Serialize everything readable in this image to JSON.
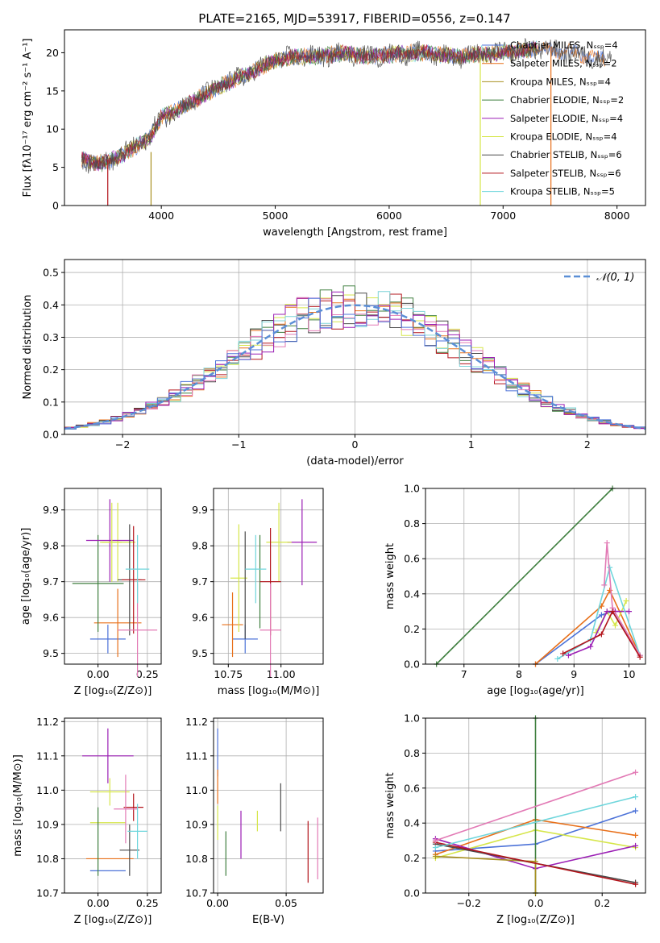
{
  "figure_title": "PLATE=2165, MJD=53917, FIBERID=0556, z=0.147",
  "colors": {
    "series": [
      "#4c72d8",
      "#e8701a",
      "#a89020",
      "#3f7f3f",
      "#9b1fb5",
      "#d6e64a",
      "#4a4a4a",
      "#b3141b",
      "#6fd6dc"
    ],
    "hist": [
      "#3f7f3f",
      "#e8701a",
      "#d6e64a",
      "#4a4a4a",
      "#b3141b",
      "#e27ab5",
      "#7fd3d8",
      "#9b1fb5",
      "#4c72d8"
    ],
    "normal_curve": "#5b8fd6",
    "grid": "#b0b0b0"
  },
  "chart_data": [
    {
      "id": "spectrum",
      "type": "line",
      "xlabel": "wavelength [Angstrom, rest frame]",
      "ylabel": "Flux [fλ10⁻¹⁷ erg cm⁻² s⁻¹ A⁻¹]",
      "xlim": [
        3150,
        8250
      ],
      "ylim": [
        0,
        23
      ],
      "xticks": [
        4000,
        5000,
        6000,
        7000,
        8000
      ],
      "yticks": [
        0,
        5,
        10,
        15,
        20
      ],
      "grid": false,
      "legend_position": "upper right",
      "legend": [
        "Chabrier MILES, Nₛₛₚ=4",
        "Salpeter MILES, Nₛₛₚ=2",
        "Kroupa MILES, Nₛₛₚ=4",
        "Chabrier ELODIE, Nₛₛₚ=2",
        "Salpeter ELODIE, Nₛₛₚ=4",
        "Kroupa ELODIE, Nₛₛₚ=4",
        "Chabrier STELIB, Nₛₛₚ=6",
        "Salpeter STELIB, Nₛₛₚ=6",
        "Kroupa STELIB, Nₛₛₚ=5"
      ],
      "continuum": {
        "x": [
          3300,
          3500,
          3700,
          3900,
          4000,
          4200,
          4500,
          4800,
          5000,
          5200,
          5400,
          5600,
          5800,
          6000,
          6300,
          6600,
          7000,
          7300,
          7600,
          7900
        ],
        "y": [
          6.0,
          5.5,
          7.0,
          9.0,
          11.5,
          13.0,
          15.5,
          17.5,
          19.0,
          19.5,
          19.5,
          20.0,
          19.5,
          19.8,
          20.0,
          19.5,
          20.0,
          20.5,
          20.0,
          19.0
        ]
      },
      "drop_lines": [
        {
          "x": 3530,
          "from": 6.0,
          "to": 0
        },
        {
          "x": 3910,
          "from": 7.0,
          "to": 0
        },
        {
          "x": 6800,
          "from": 19.5,
          "to": 0
        },
        {
          "x": 7420,
          "from": 20.5,
          "to": 0
        }
      ]
    },
    {
      "id": "residual_hist",
      "type": "bar",
      "xlabel": "(data-model)/error",
      "ylabel": "Normed distribution",
      "xlim": [
        -2.5,
        2.5
      ],
      "ylim": [
        0,
        0.54
      ],
      "xticks": [
        -2,
        -1,
        0,
        1,
        2
      ],
      "yticks": [
        0.0,
        0.1,
        0.2,
        0.3,
        0.4,
        0.5
      ],
      "grid": true,
      "legend_position": "upper right",
      "legend": [
        "𝒩(0, 1)"
      ],
      "bin_width": 0.1,
      "normal": {
        "mean": 0,
        "sigma": 1
      }
    },
    {
      "id": "age_vs_Z",
      "type": "scatter",
      "xlabel": "Z [log₁₀(Z/Z⊙)]",
      "ylabel": "age  [log₁₀(age/yr)]",
      "xlim": [
        -0.17,
        0.32
      ],
      "ylim": [
        9.47,
        9.96
      ],
      "xticks": [
        0.0,
        0.25
      ],
      "xtick_labels": [
        "0.00",
        "0.25"
      ],
      "yticks": [
        9.5,
        9.6,
        9.7,
        9.8,
        9.9
      ],
      "grid": true,
      "points": [
        {
          "x": 0.05,
          "xerr": 0.09,
          "y": 9.54,
          "yerr": 0.04
        },
        {
          "x": 0.1,
          "xerr": 0.12,
          "y": 9.585,
          "yerr": 0.095
        },
        {
          "x": 0.1,
          "xerr": 0.09,
          "y": 9.81,
          "yerr": 0.11
        },
        {
          "x": 0.0,
          "xerr": 0.13,
          "y": 9.695,
          "yerr": 0.135
        },
        {
          "x": 0.06,
          "xerr": 0.12,
          "y": 9.815,
          "yerr": 0.115
        },
        {
          "x": 0.07,
          "xerr": 0.05,
          "y": 9.81,
          "yerr": 0.11
        },
        {
          "x": 0.16,
          "xerr": 0.06,
          "y": 9.705,
          "yerr": 0.155
        },
        {
          "x": 0.18,
          "xerr": 0.06,
          "y": 9.705,
          "yerr": 0.15
        },
        {
          "x": 0.2,
          "xerr": 0.1,
          "y": 9.565,
          "yerr": 0.13
        },
        {
          "x": 0.2,
          "xerr": 0.06,
          "y": 9.735,
          "yerr": 0.095
        }
      ]
    },
    {
      "id": "age_vs_mass",
      "type": "scatter",
      "xlabel": "mass [log₁₀(M/M⊙)]",
      "ylabel": "",
      "xlim": [
        10.68,
        11.2
      ],
      "ylim": [
        9.47,
        9.96
      ],
      "xticks": [
        10.75,
        11.0
      ],
      "xtick_labels": [
        "10.75",
        "11.00"
      ],
      "yticks": [
        9.5,
        9.6,
        9.7,
        9.8,
        9.9
      ],
      "grid": true,
      "points": [
        {
          "x": 10.83,
          "xerr": 0.06,
          "y": 9.54,
          "yerr": 0.04
        },
        {
          "x": 10.77,
          "xerr": 0.05,
          "y": 9.58,
          "yerr": 0.09
        },
        {
          "x": 10.8,
          "xerr": 0.04,
          "y": 9.71,
          "yerr": 0.15
        },
        {
          "x": 10.9,
          "xerr": 0.0,
          "y": 9.7,
          "yerr": 0.13
        },
        {
          "x": 11.1,
          "xerr": 0.07,
          "y": 9.81,
          "yerr": 0.12
        },
        {
          "x": 10.99,
          "xerr": 0.06,
          "y": 9.81,
          "yerr": 0.11
        },
        {
          "x": 10.83,
          "xerr": 0.0,
          "y": 9.69,
          "yerr": 0.15
        },
        {
          "x": 10.95,
          "xerr": 0.05,
          "y": 9.7,
          "yerr": 0.15
        },
        {
          "x": 10.95,
          "xerr": 0.05,
          "y": 9.565,
          "yerr": 0.13
        },
        {
          "x": 10.88,
          "xerr": 0.05,
          "y": 9.735,
          "yerr": 0.095
        }
      ]
    },
    {
      "id": "weight_vs_age",
      "type": "line",
      "xlabel": "age  [log₁₀(age/yr)]",
      "ylabel": "mass weight",
      "xlim": [
        6.3,
        10.3
      ],
      "ylim": [
        0,
        1
      ],
      "xticks": [
        7,
        8,
        9,
        10
      ],
      "yticks": [
        0.0,
        0.2,
        0.4,
        0.6,
        0.8,
        1.0
      ],
      "grid": true,
      "series": [
        {
          "x": [
            8.3,
            9.5,
            9.7,
            10.2
          ],
          "y": [
            0.0,
            0.28,
            0.3,
            0.05
          ]
        },
        {
          "x": [
            8.3,
            9.5,
            9.65,
            10.2
          ],
          "y": [
            0.0,
            0.33,
            0.42,
            0.05
          ]
        },
        {
          "x": [
            6.5,
            9.7
          ],
          "y": [
            0.0,
            1.0
          ]
        },
        {
          "x": [
            9.4,
            9.6,
            9.75,
            9.95
          ],
          "y": [
            0.18,
            0.3,
            0.22,
            0.36
          ]
        },
        {
          "x": [
            8.9,
            9.3,
            9.6,
            9.75,
            10.0
          ],
          "y": [
            0.05,
            0.1,
            0.3,
            0.3,
            0.3
          ]
        },
        {
          "x": [
            8.7,
            9.3,
            9.65,
            10.2
          ],
          "y": [
            0.03,
            0.14,
            0.55,
            0.05
          ]
        },
        {
          "x": [
            9.55,
            9.6,
            9.7,
            10.2
          ],
          "y": [
            0.45,
            0.69,
            0.32,
            0.05
          ]
        },
        {
          "x": [
            8.8,
            9.5,
            9.7,
            10.2
          ],
          "y": [
            0.06,
            0.17,
            0.3,
            0.04
          ]
        }
      ]
    },
    {
      "id": "mass_vs_Z",
      "type": "scatter",
      "xlabel": "Z [log₁₀(Z/Z⊙)]",
      "ylabel": "mass [log₁₀(M/M⊙)]",
      "xlim": [
        -0.17,
        0.32
      ],
      "ylim": [
        10.7,
        11.21
      ],
      "xticks": [
        0.0,
        0.25
      ],
      "xtick_labels": [
        "0.00",
        "0.25"
      ],
      "yticks": [
        10.7,
        10.8,
        10.9,
        11.0,
        11.1,
        11.2
      ],
      "grid": true,
      "points": [
        {
          "x": 0.05,
          "xerr": 0.09,
          "y": 10.765,
          "yerr": 0.0
        },
        {
          "x": 0.06,
          "xerr": 0.12,
          "y": 10.8,
          "yerr": 0.0
        },
        {
          "x": 0.05,
          "xerr": 0.09,
          "y": 10.905,
          "yerr": 0.0
        },
        {
          "x": 0.0,
          "xerr": 0.0,
          "y": 10.85,
          "yerr": 0.1
        },
        {
          "x": 0.05,
          "xerr": 0.13,
          "y": 11.1,
          "yerr": 0.08
        },
        {
          "x": 0.06,
          "xerr": 0.1,
          "y": 10.995,
          "yerr": 0.04
        },
        {
          "x": 0.16,
          "xerr": 0.05,
          "y": 10.825,
          "yerr": 0.075
        },
        {
          "x": 0.18,
          "xerr": 0.05,
          "y": 10.95,
          "yerr": 0.04
        },
        {
          "x": 0.14,
          "xerr": 0.06,
          "y": 10.945,
          "yerr": 0.1
        },
        {
          "x": 0.2,
          "xerr": 0.05,
          "y": 10.88,
          "yerr": 0.08
        }
      ]
    },
    {
      "id": "mass_vs_ebv",
      "type": "scatter",
      "xlabel": "E(B-V)",
      "ylabel": "",
      "xlim": [
        -0.003,
        0.077
      ],
      "ylim": [
        10.7,
        11.21
      ],
      "xticks": [
        0.0,
        0.05
      ],
      "xtick_labels": [
        "0.00",
        "0.05"
      ],
      "yticks": [
        10.7,
        10.8,
        10.9,
        11.0,
        11.1,
        11.2
      ],
      "grid": true,
      "points": [
        {
          "x": 0.0,
          "y": 11.11,
          "yerr": 0.07
        },
        {
          "x": 0.0,
          "y": 11.01,
          "yerr": 0.05
        },
        {
          "x": 0.0,
          "y": 10.905,
          "yerr": 0.05
        },
        {
          "x": 0.006,
          "y": 10.815,
          "yerr": 0.065
        },
        {
          "x": 0.017,
          "y": 10.87,
          "yerr": 0.07
        },
        {
          "x": 0.029,
          "y": 10.91,
          "yerr": 0.03
        },
        {
          "x": 0.046,
          "y": 10.95,
          "yerr": 0.07
        },
        {
          "x": 0.066,
          "y": 10.82,
          "yerr": 0.09
        },
        {
          "x": 0.073,
          "y": 10.83,
          "yerr": 0.09
        }
      ]
    },
    {
      "id": "weight_vs_Z",
      "type": "line",
      "xlabel": "Z [log₁₀(Z/Z⊙)]",
      "ylabel": "mass weight",
      "xlim": [
        -0.33,
        0.33
      ],
      "ylim": [
        0,
        1
      ],
      "xticks": [
        -0.2,
        0.0,
        0.2
      ],
      "xtick_labels": [
        "−0.2",
        "0.0",
        "0.2"
      ],
      "yticks": [
        0.0,
        0.2,
        0.4,
        0.6,
        0.8,
        1.0
      ],
      "grid": true,
      "series": [
        {
          "x": [
            -0.3,
            0.0,
            0.3
          ],
          "y": [
            0.24,
            0.28,
            0.47
          ]
        },
        {
          "x": [
            -0.3,
            0.0,
            0.3
          ],
          "y": [
            0.22,
            0.42,
            0.33
          ]
        },
        {
          "x": [
            -0.3,
            0.0,
            0.3
          ],
          "y": [
            0.2,
            0.36,
            0.26
          ]
        },
        {
          "x": [
            0.0,
            0.0
          ],
          "y": [
            0.0,
            1.0
          ]
        },
        {
          "x": [
            -0.3,
            0.0,
            0.3
          ],
          "y": [
            0.31,
            0.14,
            0.27
          ]
        },
        {
          "x": [
            -0.3,
            0.0,
            0.0
          ],
          "y": [
            0.21,
            0.18,
            0.0
          ]
        },
        {
          "x": [
            -0.3,
            0.3
          ],
          "y": [
            0.28,
            0.06
          ]
        },
        {
          "x": [
            -0.3,
            0.3
          ],
          "y": [
            0.29,
            0.05
          ]
        },
        {
          "x": [
            -0.3,
            0.3
          ],
          "y": [
            0.26,
            0.55
          ]
        },
        {
          "x": [
            -0.3,
            0.3
          ],
          "y": [
            0.3,
            0.69
          ]
        }
      ]
    }
  ]
}
